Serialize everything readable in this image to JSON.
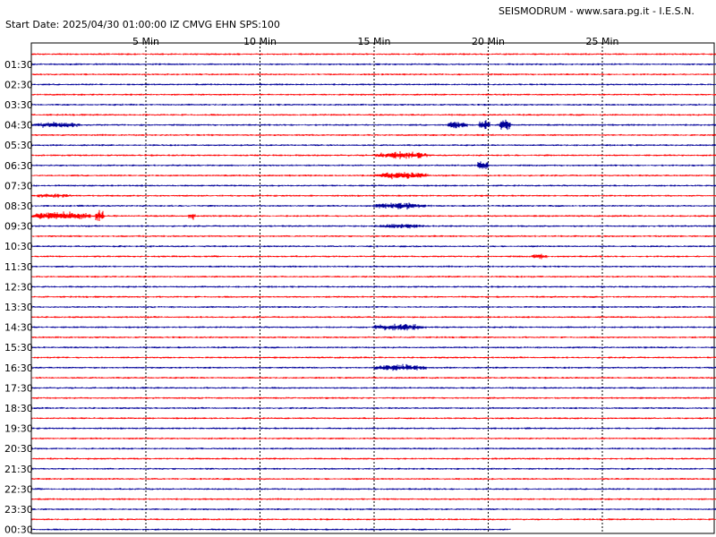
{
  "header": {
    "site": "SEISMODRUM - www.sara.pg.it - I.E.S.N.",
    "start": "Start Date: 2025/04/30 01:00:00 IZ CMVG EHN SPS:100"
  },
  "colors": {
    "red_trace": "#ff0000",
    "blue_trace": "#000099",
    "grid": "#000000",
    "frame": "#000000"
  },
  "chart_data": {
    "type": "line",
    "title": "",
    "x_axis": {
      "unit": "Min",
      "range": [
        0,
        30
      ],
      "ticks": [
        5,
        10,
        15,
        20,
        25
      ],
      "tick_labels": [
        "5 Min",
        "10 Min",
        "15 Min",
        "20 Min",
        "25 Min"
      ]
    },
    "y_axis_labels": [
      "01:30",
      "02:30",
      "03:30",
      "04:30",
      "05:30",
      "06:30",
      "07:30",
      "08:30",
      "09:30",
      "10:30",
      "11:30",
      "12:30",
      "13:30",
      "14:30",
      "15:30",
      "16:30",
      "17:30",
      "18:30",
      "19:30",
      "20:30",
      "21:30",
      "22:30",
      "23:30",
      "00:30"
    ],
    "rows": 48,
    "row_minutes": 30,
    "last_row_end_minute": 21,
    "events": [
      {
        "row": 7,
        "start_min": 0.0,
        "end_min": 2.2,
        "amp": 0.25
      },
      {
        "row": 7,
        "start_min": 18.2,
        "end_min": 19.2,
        "amp": 0.3
      },
      {
        "row": 7,
        "start_min": 19.6,
        "end_min": 20.1,
        "amp": 0.45
      },
      {
        "row": 7,
        "start_min": 20.5,
        "end_min": 21.0,
        "amp": 0.5
      },
      {
        "row": 10,
        "start_min": 15.0,
        "end_min": 17.4,
        "amp": 0.3
      },
      {
        "row": 11,
        "start_min": 19.5,
        "end_min": 20.0,
        "amp": 0.45
      },
      {
        "row": 12,
        "start_min": 15.0,
        "end_min": 17.4,
        "amp": 0.3
      },
      {
        "row": 14,
        "start_min": 0.0,
        "end_min": 1.8,
        "amp": 0.18
      },
      {
        "row": 15,
        "start_min": 15.0,
        "end_min": 17.3,
        "amp": 0.3
      },
      {
        "row": 16,
        "start_min": 0.0,
        "end_min": 2.6,
        "amp": 0.35
      },
      {
        "row": 16,
        "start_min": 2.8,
        "end_min": 3.2,
        "amp": 0.55
      },
      {
        "row": 16,
        "start_min": 6.9,
        "end_min": 7.2,
        "amp": 0.35
      },
      {
        "row": 17,
        "start_min": 15.0,
        "end_min": 17.4,
        "amp": 0.2
      },
      {
        "row": 20,
        "start_min": 21.9,
        "end_min": 22.6,
        "amp": 0.25
      },
      {
        "row": 27,
        "start_min": 15.0,
        "end_min": 17.3,
        "amp": 0.3
      },
      {
        "row": 31,
        "start_min": 15.0,
        "end_min": 17.3,
        "amp": 0.3
      }
    ]
  }
}
